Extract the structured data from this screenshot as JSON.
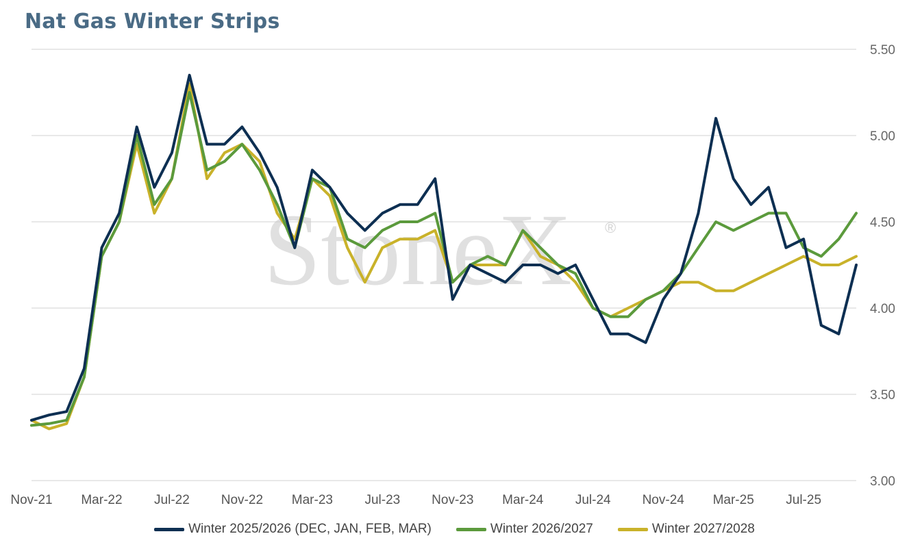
{
  "chart_data": {
    "type": "line",
    "title": "Nat Gas Winter Strips",
    "ylim": [
      3.0,
      5.5
    ],
    "yticks": [
      "3.00",
      "3.50",
      "4.00",
      "4.50",
      "5.00",
      "5.50"
    ],
    "y_axis_side": "right",
    "grid": "horizontal",
    "legend_position": "bottom",
    "xticks": [
      "Nov-21",
      "Mar-22",
      "Jul-22",
      "Nov-22",
      "Mar-23",
      "Jul-23",
      "Nov-23",
      "Mar-24",
      "Jul-24",
      "Nov-24",
      "Mar-25",
      "Jul-25"
    ],
    "x": [
      "Nov-21",
      "Dec-21",
      "Jan-22",
      "Feb-22",
      "Mar-22",
      "Apr-22",
      "May-22",
      "Jun-22",
      "Jul-22",
      "Aug-22",
      "Sep-22",
      "Oct-22",
      "Nov-22",
      "Dec-22",
      "Jan-23",
      "Feb-23",
      "Mar-23",
      "Apr-23",
      "May-23",
      "Jun-23",
      "Jul-23",
      "Aug-23",
      "Sep-23",
      "Oct-23",
      "Nov-23",
      "Dec-23",
      "Jan-24",
      "Feb-24",
      "Mar-24",
      "Apr-24",
      "May-24",
      "Jun-24",
      "Jul-24",
      "Aug-24",
      "Sep-24",
      "Oct-24",
      "Nov-24",
      "Dec-24",
      "Jan-25",
      "Feb-25",
      "Mar-25",
      "Apr-25",
      "May-25",
      "Jun-25",
      "Jul-25",
      "Aug-25",
      "Sep-25",
      "Oct-25"
    ],
    "series": [
      {
        "name": "Winter 2025/2026 (DEC, JAN, FEB, MAR)",
        "color": "#0d2f52",
        "values": [
          3.35,
          3.38,
          3.4,
          3.65,
          4.35,
          4.55,
          5.05,
          4.7,
          4.9,
          5.35,
          4.95,
          4.95,
          5.05,
          4.9,
          4.7,
          4.35,
          4.8,
          4.7,
          4.55,
          4.45,
          4.55,
          4.6,
          4.6,
          4.75,
          4.05,
          4.25,
          4.2,
          4.15,
          4.25,
          4.25,
          4.2,
          4.25,
          4.05,
          3.85,
          3.85,
          3.8,
          4.05,
          4.2,
          4.55,
          5.1,
          4.75,
          4.6,
          4.7,
          4.35,
          4.4,
          3.9,
          3.85,
          4.25
        ]
      },
      {
        "name": "Winter 2026/2027",
        "color": "#5b9a3c",
        "values": [
          3.32,
          3.33,
          3.35,
          3.6,
          4.3,
          4.5,
          5.0,
          4.6,
          4.75,
          5.25,
          4.8,
          4.85,
          4.95,
          4.8,
          4.6,
          4.35,
          4.75,
          4.7,
          4.4,
          4.35,
          4.45,
          4.5,
          4.5,
          4.55,
          4.15,
          4.25,
          4.3,
          4.25,
          4.45,
          4.35,
          4.25,
          4.2,
          4.0,
          3.95,
          3.95,
          4.05,
          4.1,
          4.2,
          4.35,
          4.5,
          4.45,
          4.5,
          4.55,
          4.55,
          4.35,
          4.3,
          4.4,
          4.55
        ]
      },
      {
        "name": "Winter 2027/2028",
        "color": "#c9b22a",
        "values": [
          3.35,
          3.3,
          3.33,
          3.6,
          4.3,
          4.5,
          4.95,
          4.55,
          4.75,
          5.3,
          4.75,
          4.9,
          4.95,
          4.85,
          4.55,
          4.4,
          4.75,
          4.65,
          4.35,
          4.15,
          4.35,
          4.4,
          4.4,
          4.45,
          4.15,
          4.25,
          4.25,
          4.25,
          4.45,
          4.3,
          4.25,
          4.15,
          4.0,
          3.95,
          4.0,
          4.05,
          4.1,
          4.15,
          4.15,
          4.1,
          4.1,
          4.15,
          4.2,
          4.25,
          4.3,
          4.25,
          4.25,
          4.3
        ]
      }
    ]
  }
}
